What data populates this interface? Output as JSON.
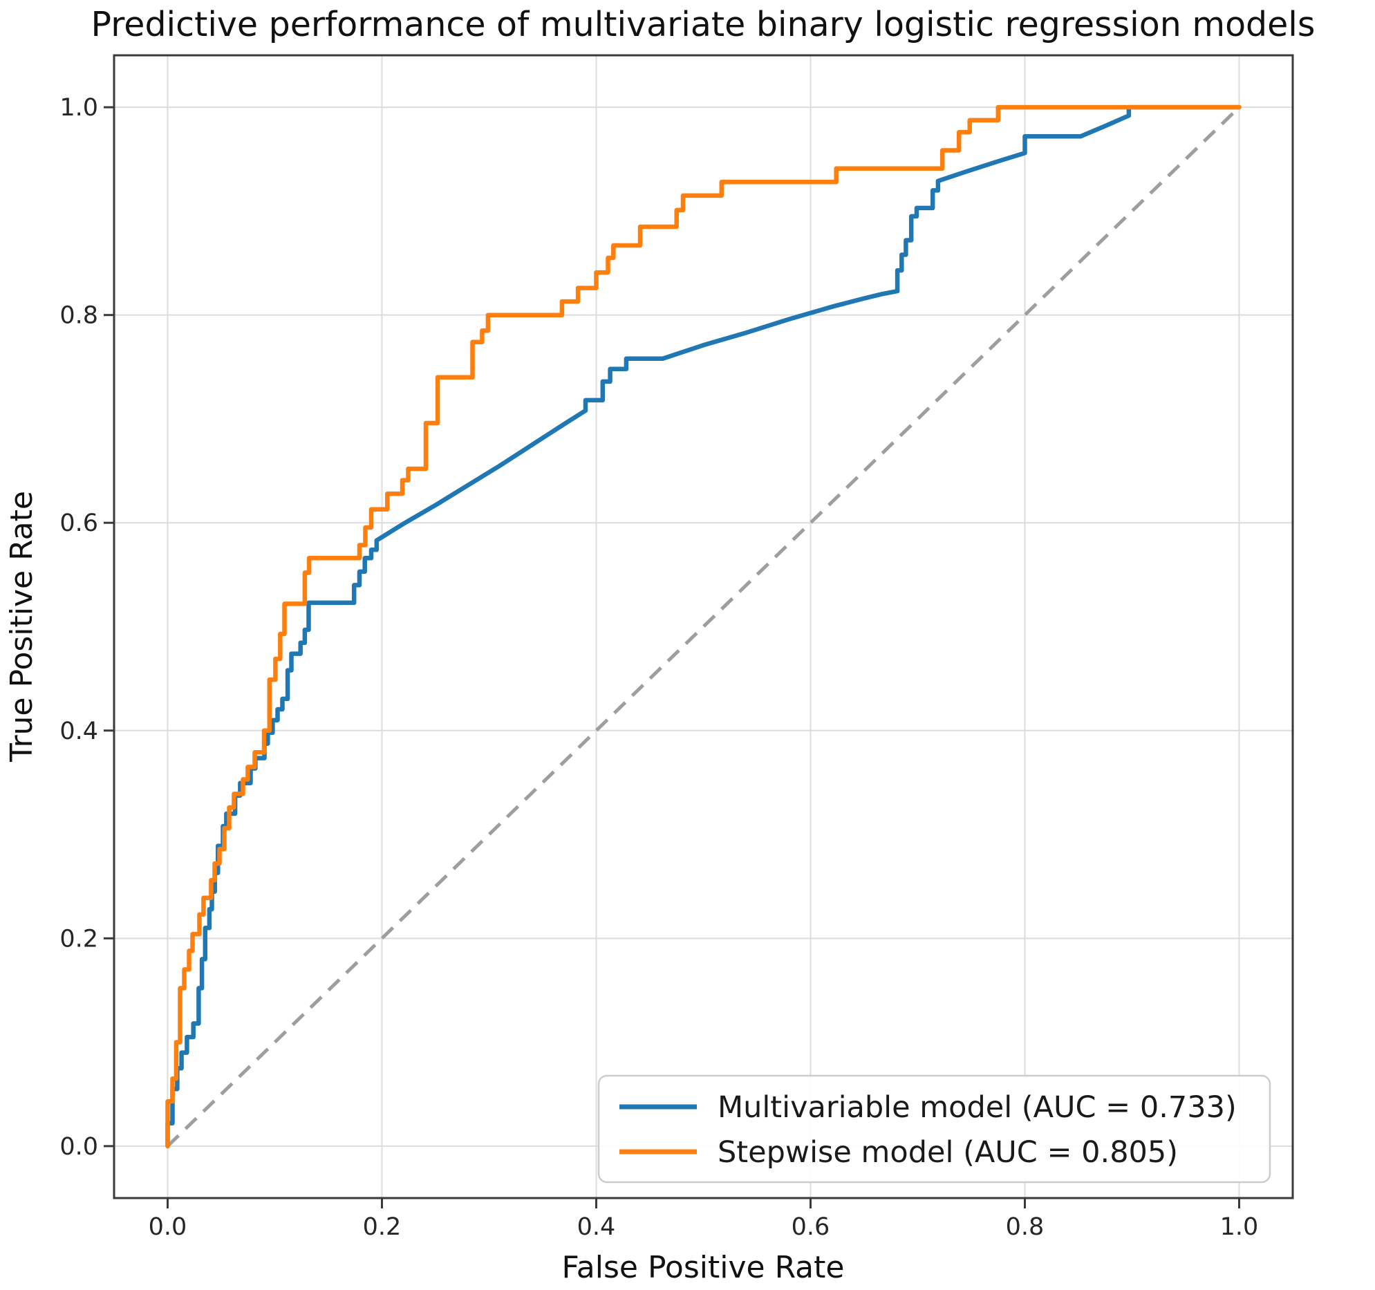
{
  "title": "Predictive performance of multivariate binary logistic regression models",
  "colors": {
    "background": "#ffffff",
    "grid": "#dcdcdc",
    "spine": "#3a3a3a",
    "tick": "#3a3a3a",
    "tick_label": "#262626",
    "text": "#111111",
    "legend_border": "#cccccc",
    "legend_background": "#ffffff",
    "diagonal": "#9e9e9e",
    "series_blue": "#1f77b4",
    "series_orange": "#ff7f0e"
  },
  "chart_data": {
    "type": "line",
    "subtype": "roc-step-curves",
    "title": "Predictive performance of multivariate binary logistic regression models",
    "xlabel": "False Positive Rate",
    "ylabel": "True Positive Rate",
    "xlim": [
      -0.05,
      1.05
    ],
    "ylim": [
      -0.05,
      1.05
    ],
    "xticks": [
      0.0,
      0.2,
      0.4,
      0.6,
      0.8,
      1.0
    ],
    "yticks": [
      0.0,
      0.2,
      0.4,
      0.6,
      0.8,
      1.0
    ],
    "grid": true,
    "legend_position": "lower right",
    "reference_line": {
      "name": "chance-diagonal",
      "style": "dashed",
      "color": "#9e9e9e",
      "points": [
        [
          0,
          0
        ],
        [
          1,
          1
        ]
      ]
    },
    "series": [
      {
        "name": "Multivariable model (AUC = 0.733)",
        "auc": 0.733,
        "color": "#1f77b4",
        "points": [
          [
            0,
            0
          ],
          [
            0,
            0.022
          ],
          [
            0.0045,
            0.022
          ],
          [
            0.0045,
            0.055
          ],
          [
            0.009,
            0.055
          ],
          [
            0.009,
            0.075
          ],
          [
            0.013,
            0.075
          ],
          [
            0.013,
            0.09
          ],
          [
            0.018,
            0.09
          ],
          [
            0.018,
            0.105
          ],
          [
            0.024,
            0.105
          ],
          [
            0.024,
            0.118
          ],
          [
            0.029,
            0.118
          ],
          [
            0.029,
            0.152
          ],
          [
            0.032,
            0.152
          ],
          [
            0.032,
            0.18
          ],
          [
            0.035,
            0.18
          ],
          [
            0.035,
            0.21
          ],
          [
            0.039,
            0.21
          ],
          [
            0.039,
            0.228
          ],
          [
            0.0413,
            0.228
          ],
          [
            0.0413,
            0.245
          ],
          [
            0.044,
            0.245
          ],
          [
            0.044,
            0.263
          ],
          [
            0.047,
            0.263
          ],
          [
            0.047,
            0.289
          ],
          [
            0.0516,
            0.289
          ],
          [
            0.0516,
            0.308
          ],
          [
            0.0548,
            0.308
          ],
          [
            0.0548,
            0.32
          ],
          [
            0.063,
            0.32
          ],
          [
            0.063,
            0.3375
          ],
          [
            0.0677,
            0.3375
          ],
          [
            0.0677,
            0.3495
          ],
          [
            0.0774,
            0.3495
          ],
          [
            0.0774,
            0.3635
          ],
          [
            0.0819,
            0.3635
          ],
          [
            0.0819,
            0.3735
          ],
          [
            0.0903,
            0.3735
          ],
          [
            0.0903,
            0.3875
          ],
          [
            0.0935,
            0.3875
          ],
          [
            0.0935,
            0.398
          ],
          [
            0.098,
            0.398
          ],
          [
            0.098,
            0.41
          ],
          [
            0.1026,
            0.41
          ],
          [
            0.1026,
            0.4205
          ],
          [
            0.1071,
            0.4205
          ],
          [
            0.1071,
            0.4305
          ],
          [
            0.112,
            0.4305
          ],
          [
            0.112,
            0.458
          ],
          [
            0.1155,
            0.458
          ],
          [
            0.1155,
            0.474
          ],
          [
            0.124,
            0.474
          ],
          [
            0.124,
            0.4845
          ],
          [
            0.128,
            0.4845
          ],
          [
            0.128,
            0.497
          ],
          [
            0.1316,
            0.497
          ],
          [
            0.1316,
            0.523
          ],
          [
            0.174,
            0.523
          ],
          [
            0.174,
            0.54
          ],
          [
            0.179,
            0.54
          ],
          [
            0.179,
            0.553
          ],
          [
            0.184,
            0.553
          ],
          [
            0.184,
            0.566
          ],
          [
            0.19,
            0.566
          ],
          [
            0.19,
            0.574
          ],
          [
            0.195,
            0.574
          ],
          [
            0.195,
            0.583
          ],
          [
            0.22,
            0.599
          ],
          [
            0.25,
            0.617
          ],
          [
            0.28,
            0.636
          ],
          [
            0.31,
            0.655
          ],
          [
            0.34,
            0.675
          ],
          [
            0.37,
            0.695
          ],
          [
            0.39,
            0.708
          ],
          [
            0.39,
            0.718
          ],
          [
            0.406,
            0.718
          ],
          [
            0.406,
            0.736
          ],
          [
            0.413,
            0.736
          ],
          [
            0.413,
            0.748
          ],
          [
            0.428,
            0.748
          ],
          [
            0.428,
            0.758
          ],
          [
            0.462,
            0.758
          ],
          [
            0.5,
            0.771
          ],
          [
            0.54,
            0.783
          ],
          [
            0.58,
            0.796
          ],
          [
            0.62,
            0.808
          ],
          [
            0.65,
            0.816
          ],
          [
            0.666,
            0.82
          ],
          [
            0.681,
            0.823
          ],
          [
            0.681,
            0.843
          ],
          [
            0.685,
            0.843
          ],
          [
            0.685,
            0.858
          ],
          [
            0.689,
            0.858
          ],
          [
            0.689,
            0.872
          ],
          [
            0.694,
            0.872
          ],
          [
            0.694,
            0.895
          ],
          [
            0.699,
            0.895
          ],
          [
            0.699,
            0.903
          ],
          [
            0.714,
            0.903
          ],
          [
            0.714,
            0.92
          ],
          [
            0.719,
            0.92
          ],
          [
            0.719,
            0.929
          ],
          [
            0.745,
            0.938
          ],
          [
            0.775,
            0.948
          ],
          [
            0.8,
            0.956
          ],
          [
            0.8,
            0.972
          ],
          [
            0.852,
            0.972
          ],
          [
            0.875,
            0.982
          ],
          [
            0.897,
            0.992
          ],
          [
            0.897,
            1.0
          ],
          [
            1.0,
            1.0
          ]
        ]
      },
      {
        "name": "Stepwise model (AUC = 0.805)",
        "auc": 0.805,
        "color": "#ff7f0e",
        "points": [
          [
            0,
            0
          ],
          [
            0,
            0.043
          ],
          [
            0.0045,
            0.043
          ],
          [
            0.0045,
            0.065
          ],
          [
            0.008,
            0.065
          ],
          [
            0.008,
            0.1
          ],
          [
            0.0116,
            0.1
          ],
          [
            0.0116,
            0.152
          ],
          [
            0.0155,
            0.152
          ],
          [
            0.0155,
            0.17
          ],
          [
            0.02,
            0.17
          ],
          [
            0.02,
            0.188
          ],
          [
            0.0232,
            0.188
          ],
          [
            0.0232,
            0.204
          ],
          [
            0.0297,
            0.204
          ],
          [
            0.0297,
            0.223
          ],
          [
            0.0335,
            0.223
          ],
          [
            0.0335,
            0.239
          ],
          [
            0.0406,
            0.239
          ],
          [
            0.0406,
            0.256
          ],
          [
            0.0439,
            0.256
          ],
          [
            0.0439,
            0.272
          ],
          [
            0.0484,
            0.272
          ],
          [
            0.0484,
            0.286
          ],
          [
            0.0529,
            0.286
          ],
          [
            0.0529,
            0.306
          ],
          [
            0.0574,
            0.306
          ],
          [
            0.0574,
            0.326
          ],
          [
            0.0619,
            0.326
          ],
          [
            0.0619,
            0.339
          ],
          [
            0.0703,
            0.339
          ],
          [
            0.0703,
            0.353
          ],
          [
            0.0748,
            0.353
          ],
          [
            0.0748,
            0.365
          ],
          [
            0.0813,
            0.365
          ],
          [
            0.0813,
            0.379
          ],
          [
            0.09,
            0.379
          ],
          [
            0.09,
            0.4
          ],
          [
            0.095,
            0.4
          ],
          [
            0.095,
            0.449
          ],
          [
            0.1006,
            0.449
          ],
          [
            0.1006,
            0.469
          ],
          [
            0.105,
            0.469
          ],
          [
            0.105,
            0.493
          ],
          [
            0.109,
            0.493
          ],
          [
            0.109,
            0.522
          ],
          [
            0.128,
            0.522
          ],
          [
            0.128,
            0.552
          ],
          [
            0.132,
            0.552
          ],
          [
            0.132,
            0.566
          ],
          [
            0.179,
            0.566
          ],
          [
            0.179,
            0.5785
          ],
          [
            0.1845,
            0.5785
          ],
          [
            0.1845,
            0.5955
          ],
          [
            0.19,
            0.5955
          ],
          [
            0.19,
            0.613
          ],
          [
            0.205,
            0.613
          ],
          [
            0.205,
            0.628
          ],
          [
            0.219,
            0.628
          ],
          [
            0.219,
            0.641
          ],
          [
            0.2245,
            0.641
          ],
          [
            0.2245,
            0.652
          ],
          [
            0.241,
            0.652
          ],
          [
            0.241,
            0.696
          ],
          [
            0.252,
            0.696
          ],
          [
            0.252,
            0.74
          ],
          [
            0.2845,
            0.74
          ],
          [
            0.2845,
            0.774
          ],
          [
            0.2935,
            0.774
          ],
          [
            0.2935,
            0.785
          ],
          [
            0.299,
            0.785
          ],
          [
            0.299,
            0.8
          ],
          [
            0.368,
            0.8
          ],
          [
            0.368,
            0.813
          ],
          [
            0.383,
            0.813
          ],
          [
            0.383,
            0.826
          ],
          [
            0.4,
            0.826
          ],
          [
            0.4,
            0.841
          ],
          [
            0.411,
            0.841
          ],
          [
            0.411,
            0.855
          ],
          [
            0.416,
            0.855
          ],
          [
            0.416,
            0.867
          ],
          [
            0.441,
            0.867
          ],
          [
            0.441,
            0.885
          ],
          [
            0.475,
            0.885
          ],
          [
            0.475,
            0.901
          ],
          [
            0.481,
            0.901
          ],
          [
            0.481,
            0.915
          ],
          [
            0.517,
            0.915
          ],
          [
            0.517,
            0.928
          ],
          [
            0.624,
            0.928
          ],
          [
            0.624,
            0.941
          ],
          [
            0.723,
            0.941
          ],
          [
            0.723,
            0.9585
          ],
          [
            0.7385,
            0.9585
          ],
          [
            0.7385,
            0.976
          ],
          [
            0.7485,
            0.976
          ],
          [
            0.7485,
            0.9875
          ],
          [
            0.775,
            0.9875
          ],
          [
            0.775,
            1.0
          ],
          [
            1.0,
            1.0
          ]
        ]
      }
    ]
  },
  "legend": {
    "item_1": "Multivariable model (AUC = 0.733)",
    "item_2": "Stepwise model (AUC = 0.805)"
  }
}
